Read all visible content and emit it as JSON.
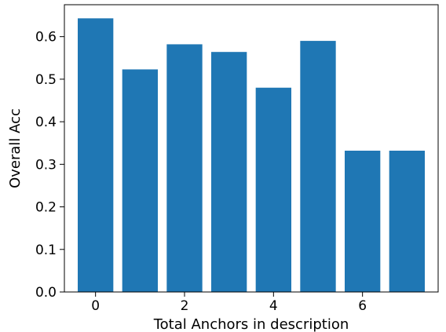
{
  "chart_data": {
    "type": "bar",
    "title": "",
    "xlabel": "Total Anchors in description",
    "ylabel": "Overall Acc",
    "x": [
      0,
      1,
      2,
      3,
      4,
      5,
      6,
      7
    ],
    "values": [
      0.643,
      0.523,
      0.582,
      0.564,
      0.48,
      0.59,
      0.332,
      0.332
    ],
    "xlim": [
      -0.7,
      7.7
    ],
    "ylim": [
      0,
      0.675
    ],
    "xticks": [
      0,
      2,
      4,
      6
    ],
    "xtick_labels": [
      "0",
      "2",
      "4",
      "6"
    ],
    "yticks": [
      0,
      0.1,
      0.2,
      0.3,
      0.4,
      0.5,
      0.6
    ],
    "ytick_labels": [
      "0.0",
      "0.1",
      "0.2",
      "0.3",
      "0.4",
      "0.5",
      "0.6"
    ],
    "bar_color": "#1f77b4",
    "grid": false,
    "legend": "none"
  }
}
